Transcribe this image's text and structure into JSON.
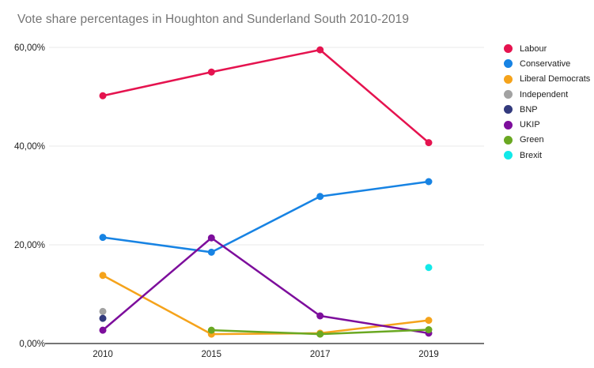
{
  "title": "Vote share percentages in Houghton and Sunderland South 2010-2019",
  "chart_data": {
    "type": "line",
    "title": "Vote share percentages in Houghton and Sunderland South 2010-2019",
    "categories": [
      "2010",
      "2015",
      "2017",
      "2019"
    ],
    "series": [
      {
        "name": "Labour",
        "color": "#e5134f",
        "values": [
          50.2,
          55.0,
          59.5,
          40.7
        ]
      },
      {
        "name": "Conservative",
        "color": "#1783e3",
        "values": [
          21.5,
          18.5,
          29.8,
          32.8
        ]
      },
      {
        "name": "Liberal Democrats",
        "color": "#f5a31b",
        "values": [
          13.8,
          1.9,
          2.1,
          4.7
        ]
      },
      {
        "name": "Independent",
        "color": "#a2a2a2",
        "values": [
          6.5,
          null,
          null,
          null
        ]
      },
      {
        "name": "BNP",
        "color": "#333a7d",
        "values": [
          5.1,
          null,
          null,
          null
        ]
      },
      {
        "name": "UKIP",
        "color": "#7d0e9c",
        "values": [
          2.7,
          21.4,
          5.6,
          2.1
        ]
      },
      {
        "name": "Green",
        "color": "#6aa822",
        "values": [
          null,
          2.7,
          1.9,
          2.8
        ]
      },
      {
        "name": "Brexit",
        "color": "#12e9e9",
        "values": [
          null,
          null,
          null,
          15.4
        ]
      }
    ],
    "y_ticks": [
      {
        "label": "0,00%",
        "value": 0
      },
      {
        "label": "20,00%",
        "value": 20
      },
      {
        "label": "40,00%",
        "value": 40
      },
      {
        "label": "60,00%",
        "value": 60
      }
    ],
    "xlabel": "",
    "ylabel": "",
    "ylim": [
      0,
      60
    ],
    "grid": true,
    "legend_position": "right",
    "grid_color": "#e9e9e9",
    "axis_color": "#757575",
    "title_color": "#757575"
  }
}
